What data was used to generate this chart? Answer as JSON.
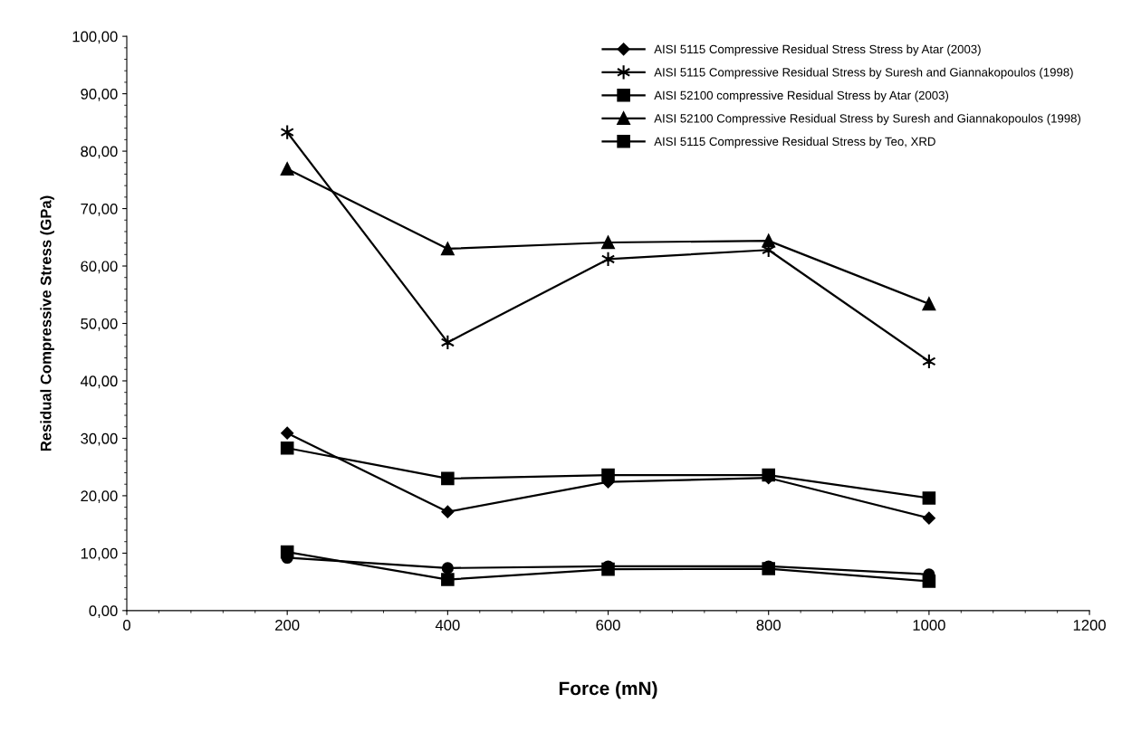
{
  "chart_data": {
    "type": "line",
    "xlabel": "Force (mN)",
    "ylabel": "Residual Compressive Stress (GPa)",
    "x": [
      200,
      400,
      600,
      800,
      1000
    ],
    "series": [
      {
        "name": "AISI 5115 Compressive Residual Stress Stress by Atar (2003)",
        "color": "#000000",
        "marker": "diamond",
        "values": [
          30.9,
          17.2,
          22.4,
          23.1,
          16.1
        ]
      },
      {
        "name": "AISI 5115 Compressive Residual Stress by Suresh and Giannakopoulos (1998)",
        "color": "#000000",
        "marker": "cross",
        "values": [
          83.3,
          46.7,
          61.2,
          62.8,
          43.4
        ]
      },
      {
        "name": "AISI 52100 compressive Residual Stress by Atar (2003)",
        "color": "#000000",
        "marker": "square",
        "values": [
          28.3,
          23.0,
          23.6,
          23.6,
          19.6
        ]
      },
      {
        "name": "AISI 52100 Compressive Residual Stress by Suresh and Giannakopoulos (1998)",
        "color": "#000000",
        "marker": "triangle",
        "values": [
          76.9,
          63.0,
          64.1,
          64.4,
          53.4
        ]
      },
      {
        "name": "AISI 5115 Compressive Residual Stress by Teo, XRD",
        "color": "#000000",
        "marker": "square",
        "values": [
          10.2,
          5.4,
          7.2,
          7.3,
          5.1
        ]
      },
      {
        "color": "#000000",
        "marker": "circle",
        "values": [
          9.2,
          7.4,
          7.7,
          7.7,
          6.3
        ]
      }
    ],
    "xlim": [
      0,
      1200
    ],
    "xticks": [
      0,
      200,
      400,
      600,
      800,
      1000,
      1200
    ],
    "ylim": [
      0,
      100
    ],
    "yticks": [
      {
        "value": 0,
        "label": "0,00"
      },
      {
        "value": 10,
        "label": "10,00"
      },
      {
        "value": 20,
        "label": "20,00"
      },
      {
        "value": 30,
        "label": "30,00"
      },
      {
        "value": 40,
        "label": "40,00"
      },
      {
        "value": 50,
        "label": "50,00"
      },
      {
        "value": 60,
        "label": "60,00"
      },
      {
        "value": 70,
        "label": "70,00"
      },
      {
        "value": 80,
        "label": "80,00"
      },
      {
        "value": 90,
        "label": "90,00"
      },
      {
        "value": 100,
        "label": "100,00"
      }
    ],
    "grid": false,
    "legend": "top right",
    "line_style": "solid"
  }
}
